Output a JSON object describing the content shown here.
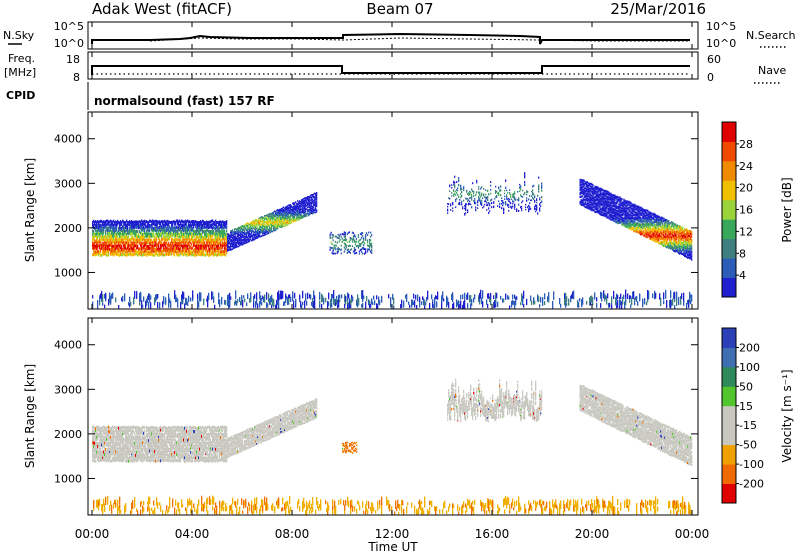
{
  "header": {
    "station": "Adak West (fitACF)",
    "beam": "Beam 07",
    "date": "25/Mar/2016"
  },
  "status_panels": {
    "nsky_label": "N.Sky",
    "nsearch_label": "N.Search",
    "freq_label_1": "Freq.",
    "freq_label_2": "[MHz]",
    "nave_label": "Nave",
    "cpid_label": "CPID",
    "cpid_text": "normalsound (fast) 157 RF",
    "noise_ticks_left": [
      "10^5",
      "10^0"
    ],
    "noise_ticks_right": [
      "10^5",
      "10^0"
    ],
    "freq_ticks": [
      "18",
      "8"
    ],
    "nave_ticks": [
      "60",
      "0"
    ]
  },
  "colors": {
    "power_scale": [
      "#1f1fd0",
      "#2a5cb8",
      "#3f7f7f",
      "#3aa85a",
      "#9ad43a",
      "#f0c000",
      "#f08a00",
      "#f04a00",
      "#e00000"
    ],
    "velocity_scale": [
      "#2a3fb8",
      "#3f6fb0",
      "#2e8a5a",
      "#52c42e",
      "#c8c8c0",
      "#c8c8c0",
      "#f0a000",
      "#f06a00",
      "#e00000"
    ]
  },
  "chart_data": [
    {
      "type": "heatmap",
      "name": "power",
      "xlabel": "Time UT",
      "ylabel": "Slant Range [km]",
      "x_range_hours": [
        0,
        24
      ],
      "x_ticks": [
        "00:00",
        "04:00",
        "08:00",
        "12:00",
        "16:00",
        "20:00",
        "00:00"
      ],
      "ylim_km": [
        180,
        4600
      ],
      "y_ticks": [
        "1000",
        "2000",
        "3000",
        "4000"
      ],
      "colorbar_label": "Power [dB]",
      "colorbar_ticks": [
        "4",
        "8",
        "12",
        "16",
        "20",
        "24",
        "28"
      ],
      "colorbar_range": [
        0,
        32
      ],
      "regions": [
        {
          "t0": 0.0,
          "t1": 5.4,
          "r_lo": 1350,
          "r_hi": 2150,
          "peak": 1550,
          "level": "strong"
        },
        {
          "t0": 5.4,
          "t1": 9.0,
          "r_lo": 1450,
          "r_hi": 2800,
          "peak": 2100,
          "level": "medium"
        },
        {
          "t0": 9.5,
          "t1": 11.2,
          "r_lo": 1400,
          "r_hi": 1900,
          "peak": 1650,
          "level": "weak"
        },
        {
          "t0": 14.2,
          "t1": 18.0,
          "r_lo": 2200,
          "r_hi": 3100,
          "peak": 2750,
          "level": "weak"
        },
        {
          "t0": 19.5,
          "t1": 24.0,
          "r_lo": 1250,
          "r_hi": 3100,
          "peak": 1800,
          "level": "strong"
        },
        {
          "t0": 0.0,
          "t1": 24.0,
          "r_lo": 180,
          "r_hi": 450,
          "peak": 300,
          "level": "ground"
        }
      ]
    },
    {
      "type": "heatmap",
      "name": "velocity",
      "xlabel": "Time UT",
      "ylabel": "Slant Range [km]",
      "x_range_hours": [
        0,
        24
      ],
      "x_ticks": [
        "00:00",
        "04:00",
        "08:00",
        "12:00",
        "16:00",
        "20:00",
        "00:00"
      ],
      "ylim_km": [
        180,
        4600
      ],
      "y_ticks": [
        "1000",
        "2000",
        "3000",
        "4000"
      ],
      "colorbar_label": "Velocity [m s⁻¹]",
      "colorbar_ticks": [
        "200",
        "100",
        "50",
        "15",
        "-15",
        "-50",
        "-100",
        "-200"
      ],
      "colorbar_range": [
        -250,
        250
      ],
      "regions": [
        {
          "t0": 0.0,
          "t1": 5.4,
          "r_lo": 1350,
          "r_hi": 2150,
          "velocity": 0
        },
        {
          "t0": 5.4,
          "t1": 9.0,
          "r_lo": 1450,
          "r_hi": 2800,
          "velocity": 0
        },
        {
          "t0": 10.0,
          "t1": 10.6,
          "r_lo": 1550,
          "r_hi": 1800,
          "velocity": -60
        },
        {
          "t0": 14.2,
          "t1": 18.0,
          "r_lo": 2200,
          "r_hi": 3100,
          "velocity": 0
        },
        {
          "t0": 19.5,
          "t1": 24.0,
          "r_lo": 1250,
          "r_hi": 3100,
          "velocity": 0
        },
        {
          "t0": 0.0,
          "t1": 24.0,
          "r_lo": 180,
          "r_hi": 450,
          "velocity": -40
        }
      ]
    }
  ]
}
